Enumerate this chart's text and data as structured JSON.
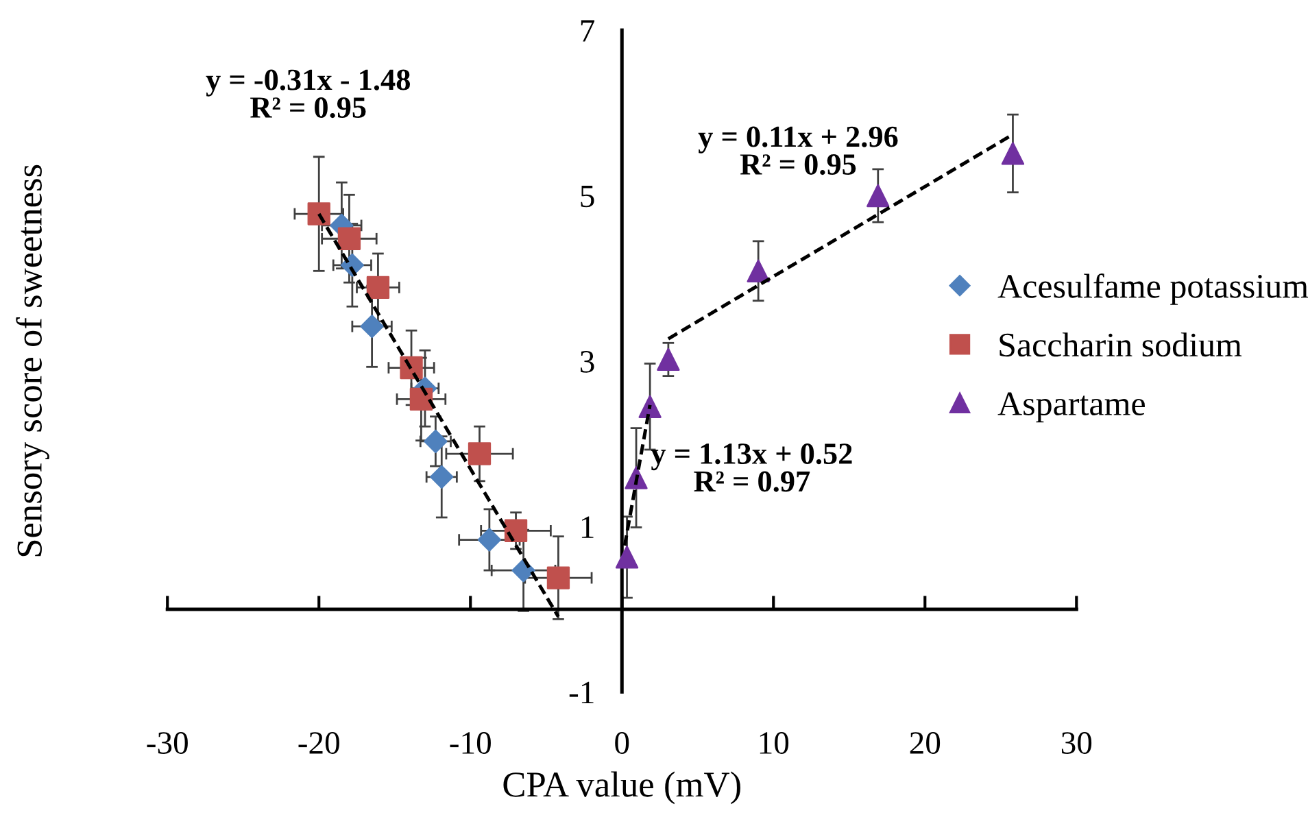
{
  "chart_data": {
    "type": "scatter",
    "xlabel": "CPA value (mV)",
    "ylabel": "Sensory score of sweetness",
    "xlim": [
      -30,
      30
    ],
    "ylim": [
      -1,
      7
    ],
    "xticks": [
      -30,
      -20,
      -10,
      0,
      10,
      20,
      30
    ],
    "yticks": [
      -1,
      1,
      3,
      5,
      7
    ],
    "grid": false,
    "legend": "right",
    "series": [
      {
        "name": "Acesulfame potassium",
        "color": "#4f81bd",
        "marker": "diamond",
        "x": [
          -18.5,
          -17.8,
          -16.5,
          -13.0,
          -12.3,
          -11.9,
          -8.75,
          -6.5
        ],
        "values": [
          4.64,
          4.16,
          3.42,
          2.67,
          2.03,
          1.6,
          0.84,
          0.47
        ],
        "errors": [
          0.52,
          0.5,
          0.49,
          0.46,
          0.3,
          0.49,
          0.37,
          0.49
        ],
        "xerrors": [
          1.3,
          1.25,
          1.3,
          0.9,
          1.0,
          1.0,
          2.0,
          2.1
        ]
      },
      {
        "name": "Saccharin sodium",
        "color": "#c0504d",
        "marker": "square",
        "x": [
          -20.0,
          -18.0,
          -16.1,
          -13.9,
          -13.25,
          -9.4,
          -7.0,
          -4.2
        ],
        "values": [
          4.78,
          4.48,
          3.89,
          2.92,
          2.54,
          1.88,
          0.95,
          0.38
        ],
        "errors": [
          0.69,
          0.53,
          0.41,
          0.45,
          0.5,
          0.33,
          0.22,
          0.5
        ],
        "xerrors": [
          1.6,
          1.8,
          1.4,
          1.5,
          1.6,
          2.2,
          2.3,
          2.2
        ]
      },
      {
        "name": "Aspartame",
        "color": "#7030a0",
        "marker": "triangle",
        "x": [
          0.33,
          0.94,
          1.85,
          3.06,
          9.0,
          16.9,
          25.8
        ],
        "values": [
          0.63,
          1.59,
          2.45,
          3.02,
          4.09,
          5.0,
          5.51
        ],
        "errors": [
          0.49,
          0.6,
          0.52,
          0.2,
          0.36,
          0.32,
          0.47
        ]
      },
      {
        "type": "line",
        "color": "#000000",
        "line_style": "dashed",
        "x": [
          -20.0,
          -4.2
        ],
        "values": [
          4.78,
          -0.09
        ]
      },
      {
        "type": "line",
        "color": "#000000",
        "line_style": "dashed",
        "x": [
          0.18,
          1.85
        ],
        "values": [
          0.77,
          2.47
        ]
      },
      {
        "type": "line",
        "color": "#000000",
        "line_style": "dashed",
        "x": [
          3.06,
          25.8
        ],
        "values": [
          3.27,
          5.74
        ]
      }
    ],
    "annotations": [
      "y = -0.31x - 1.48\nR² = 0.95",
      "y = 0.11x + 2.96\nR² = 0.95",
      "y = 1.13x + 0.52\nR² = 0.97"
    ]
  }
}
